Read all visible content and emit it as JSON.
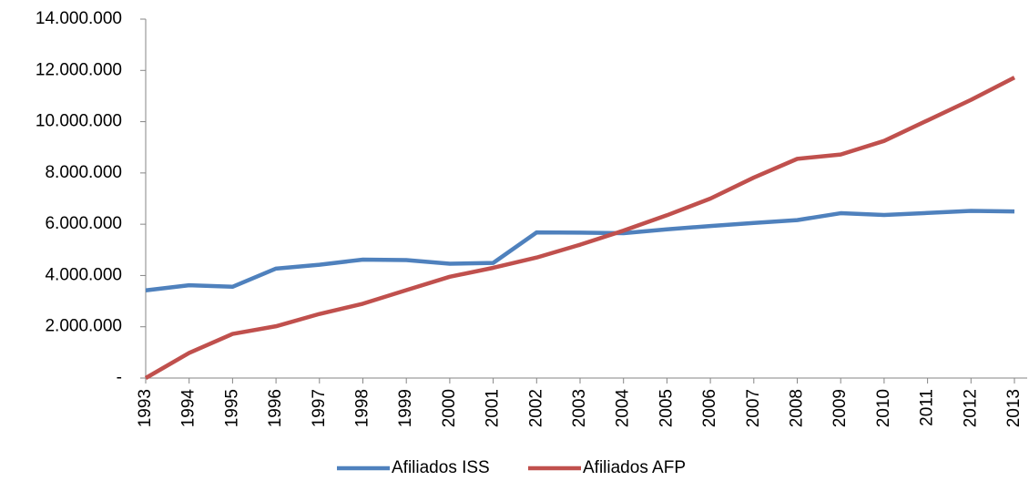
{
  "chart_data": {
    "type": "line",
    "categories": [
      "1993",
      "1994",
      "1995",
      "1996",
      "1997",
      "1998",
      "1999",
      "2000",
      "2001",
      "2002",
      "2003",
      "2004",
      "2005",
      "2006",
      "2007",
      "2008",
      "2009",
      "2010",
      "2011",
      "2012",
      "2013"
    ],
    "series": [
      {
        "name": "Afiliados ISS",
        "color": "#4f81bd",
        "values": [
          3420000,
          3620000,
          3560000,
          4270000,
          4420000,
          4620000,
          4600000,
          4460000,
          4490000,
          5680000,
          5670000,
          5650000,
          5800000,
          5930000,
          6050000,
          6160000,
          6430000,
          6360000,
          6440000,
          6520000,
          6500000
        ]
      },
      {
        "name": "Afiliados AFP",
        "color": "#c0504d",
        "values": [
          0,
          980000,
          1720000,
          2020000,
          2500000,
          2900000,
          3430000,
          3950000,
          4300000,
          4700000,
          5200000,
          5750000,
          6350000,
          7000000,
          7820000,
          8550000,
          8720000,
          9250000,
          10050000,
          10850000,
          11720000
        ]
      }
    ],
    "ylim": [
      0,
      14000000
    ],
    "yticks": [
      {
        "value": 0,
        "label": "-"
      },
      {
        "value": 2000000,
        "label": "2.000.000"
      },
      {
        "value": 4000000,
        "label": "4.000.000"
      },
      {
        "value": 6000000,
        "label": "6.000.000"
      },
      {
        "value": 8000000,
        "label": "8.000.000"
      },
      {
        "value": 10000000,
        "label": "10.000.000"
      },
      {
        "value": 12000000,
        "label": "12.000.000"
      },
      {
        "value": 14000000,
        "label": "14.000.000"
      }
    ],
    "legend": "bottom"
  }
}
